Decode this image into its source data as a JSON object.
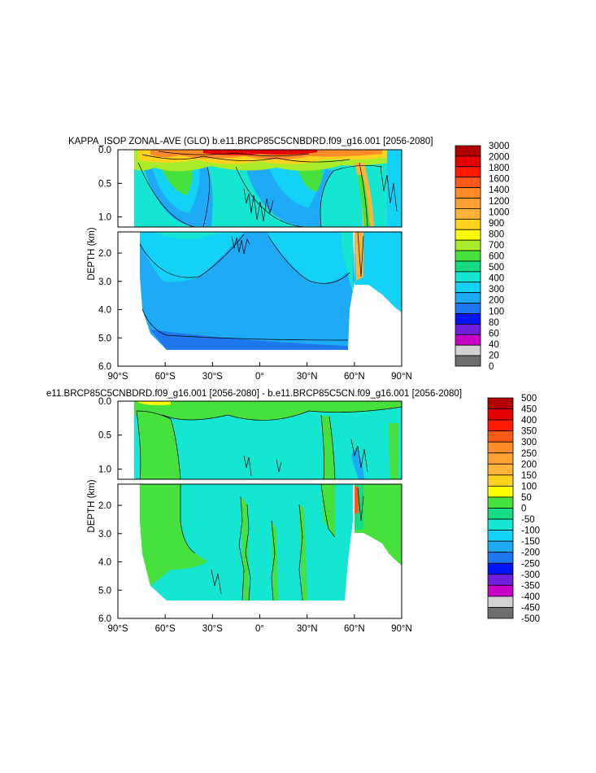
{
  "chart_data": [
    {
      "type": "contour",
      "title": "KAPPA_ISOP ZONAL-AVE (GLO) b.e11.BRCP85C5CNBDRD.f09_g16.001 [2056-2080]",
      "xlabel": "",
      "ylabel": "DEPTH (km)",
      "x_ticks": [
        "90°S",
        "60°S",
        "30°S",
        "0°",
        "30°N",
        "60°N",
        "90°N"
      ],
      "x_tick_values": [
        -90,
        -60,
        -30,
        0,
        30,
        60,
        90
      ],
      "xlim": [
        -90,
        90
      ],
      "upper_panel": {
        "ylim": [
          0.0,
          1.15
        ],
        "y_ticks": [
          "0.0",
          "0.5",
          "1.0"
        ],
        "y_tick_values": [
          0.0,
          0.5,
          1.0
        ]
      },
      "lower_panel": {
        "ylim": [
          1.25,
          6.0
        ],
        "y_ticks": [
          "2.0",
          "3.0",
          "4.0",
          "5.0",
          "6.0"
        ],
        "y_tick_values": [
          2.0,
          3.0,
          4.0,
          5.0,
          6.0
        ]
      },
      "colorbar": {
        "labels": [
          "3000",
          "2000",
          "1800",
          "1600",
          "1400",
          "1200",
          "1000",
          "900",
          "800",
          "700",
          "600",
          "500",
          "400",
          "300",
          "200",
          "100",
          "80",
          "60",
          "40",
          "20",
          "0"
        ],
        "colors": [
          "#b20000",
          "#e40000",
          "#ff1a00",
          "#ff5a1a",
          "#ff8c28",
          "#ffa032",
          "#ffb438",
          "#ffd21e",
          "#ffff00",
          "#aaeb2a",
          "#46e13c",
          "#14dc82",
          "#14e6d2",
          "#14d2f5",
          "#1eaaf5",
          "#1e78f0",
          "#0014f5",
          "#6e1edc",
          "#c800c8",
          "#d2d2d2",
          "#6e6e6e"
        ]
      }
    },
    {
      "type": "contour",
      "title": "e11.BRCP85C5CNBDRD.f09_g16.001 [2056-2080] - b.e11.BRCP85C5CN.f09_g16.001 [2056-2080]",
      "xlabel": "",
      "ylabel": "DEPTH (km)",
      "x_ticks": [
        "90°S",
        "60°S",
        "30°S",
        "0°",
        "30°N",
        "60°N",
        "90°N"
      ],
      "x_tick_values": [
        -90,
        -60,
        -30,
        0,
        30,
        60,
        90
      ],
      "xlim": [
        -90,
        90
      ],
      "upper_panel": {
        "ylim": [
          0.0,
          1.15
        ],
        "y_ticks": [
          "0.0",
          "0.5",
          "1.0"
        ],
        "y_tick_values": [
          0.0,
          0.5,
          1.0
        ]
      },
      "lower_panel": {
        "ylim": [
          1.25,
          6.0
        ],
        "y_ticks": [
          "2.0",
          "3.0",
          "4.0",
          "5.0",
          "6.0"
        ],
        "y_tick_values": [
          2.0,
          3.0,
          4.0,
          5.0,
          6.0
        ]
      },
      "colorbar": {
        "labels": [
          "500",
          "450",
          "400",
          "350",
          "300",
          "250",
          "200",
          "150",
          "100",
          "50",
          "0",
          "-50",
          "-100",
          "-150",
          "-200",
          "-250",
          "-300",
          "-350",
          "-400",
          "-450",
          "-500"
        ],
        "colors": [
          "#b20000",
          "#e40000",
          "#ff1a00",
          "#ff5a1a",
          "#ff8c28",
          "#ffa032",
          "#ffb438",
          "#ffd21e",
          "#ffff00",
          "#46e13c",
          "#14dc82",
          "#14e6d2",
          "#14d2f5",
          "#1eaaf5",
          "#1e78f0",
          "#0014f5",
          "#6e1edc",
          "#c800c8",
          "#d2d2d2",
          "#6e6e6e"
        ]
      }
    }
  ]
}
